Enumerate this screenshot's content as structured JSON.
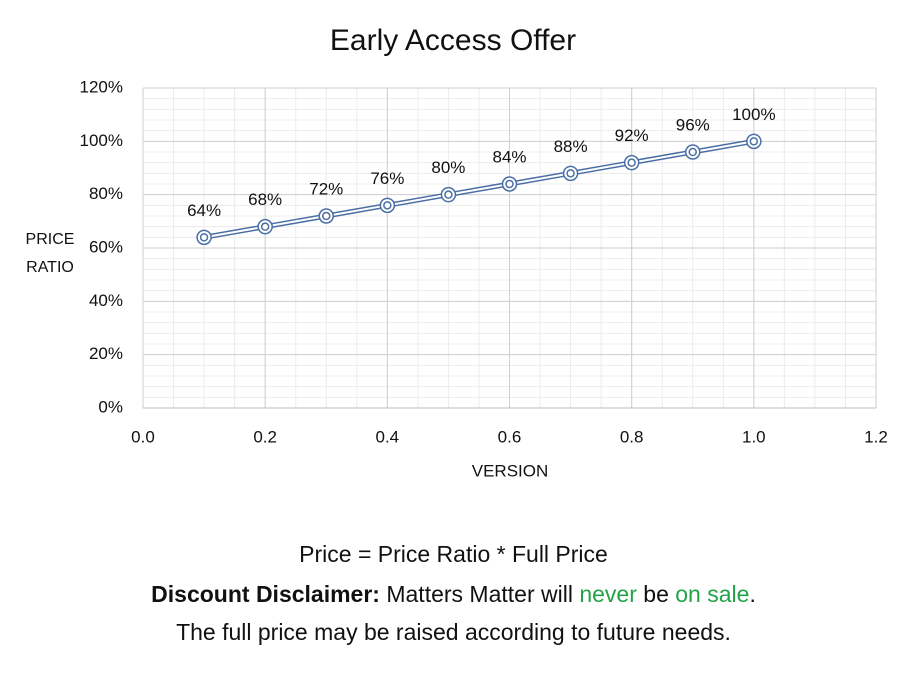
{
  "chart_data": {
    "type": "line",
    "title": "Early Access Offer",
    "x_label": "VERSION",
    "y_label": "PRICE RATIO",
    "x": [
      0.1,
      0.2,
      0.3,
      0.4,
      0.5,
      0.6,
      0.7,
      0.8,
      0.9,
      1.0
    ],
    "series": [
      {
        "name": "Price Ratio",
        "color": "#4a6fa5",
        "values": [
          64,
          68,
          72,
          76,
          80,
          84,
          88,
          92,
          96,
          100
        ],
        "value_labels": [
          "64%",
          "68%",
          "72%",
          "76%",
          "80%",
          "84%",
          "88%",
          "92%",
          "96%",
          "100%"
        ]
      }
    ],
    "xlim": [
      0,
      1.2
    ],
    "xticks": [
      {
        "value": 0,
        "label": "0.0"
      },
      0.2,
      0.4,
      0.6,
      0.8,
      {
        "value": 1,
        "label": "1.0"
      },
      1.2
    ],
    "ylim": [
      0,
      120
    ],
    "yticks": [
      {
        "value": 0,
        "label": "0%"
      },
      {
        "value": 20,
        "label": "20%"
      },
      {
        "value": 40,
        "label": "40%"
      },
      {
        "value": 60,
        "label": "60%"
      },
      {
        "value": 80,
        "label": "80%"
      },
      {
        "value": 100,
        "label": "100%"
      },
      {
        "value": 120,
        "label": "120%"
      }
    ],
    "grid": true
  },
  "footer": {
    "formula": "Price = Price Ratio * Full Price",
    "disclaimer": {
      "label": "Discount Disclaimer:",
      "text1": "Matters Matter will",
      "highlight1": "never",
      "text2": "be",
      "highlight2": "on sale",
      "text3": "."
    },
    "note": "The full price may be raised according to future needs."
  }
}
